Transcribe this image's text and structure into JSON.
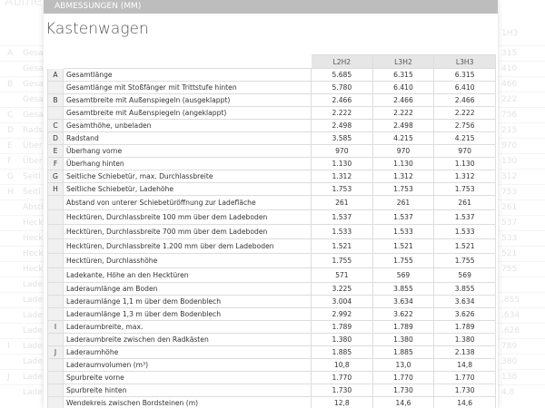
{
  "background": {
    "title": "Abme",
    "header_right": "1H3",
    "rows": [
      [
        "A",
        "Gesa",
        "315"
      ],
      [
        null,
        "Gesa",
        "410"
      ],
      [
        "B",
        "Gesa",
        "466"
      ],
      [
        null,
        "Gesa",
        "222"
      ],
      [
        "C",
        "Gesa",
        "756"
      ],
      [
        "D",
        "Rads",
        "215"
      ],
      [
        "E",
        "Über",
        "970"
      ],
      [
        "F",
        "Über",
        "130"
      ],
      [
        "G",
        "Seitl",
        "312"
      ],
      [
        "H",
        "Seitl",
        "753"
      ],
      [
        null,
        "Absti",
        "261"
      ],
      [
        null,
        "Heck",
        "537"
      ],
      [
        null,
        "Heck",
        "533"
      ],
      [
        null,
        "Heck",
        "521"
      ],
      [
        null,
        "Heck",
        "755"
      ],
      [
        null,
        "Lade",
        null
      ],
      [
        null,
        "Lade",
        ".855"
      ],
      [
        null,
        "Lade",
        ".634"
      ],
      [
        null,
        "Lade",
        ".626"
      ],
      [
        "I",
        "Lade",
        "789"
      ],
      [
        null,
        "Lade",
        "380"
      ],
      [
        "J",
        "Lade",
        "138"
      ],
      [
        null,
        "Lade",
        "4,8"
      ]
    ]
  },
  "modal": {
    "header": "ABMESSUNGEN (MM)",
    "title": "Kastenwagen",
    "table": {
      "columns": [
        "L2H2",
        "L3H2",
        "L3H3"
      ],
      "rows": [
        [
          "A",
          "Gesamtlänge",
          "5.685",
          "6.315",
          "6.315"
        ],
        [
          null,
          "Gesamtlänge mit Stoßfänger mit Trittstufe hinten",
          "5.780",
          "6.410",
          "6.410"
        ],
        [
          "B",
          "Gesamtbreite mit Außenspiegeln (ausgeklappt)",
          "2.466",
          "2.466",
          "2.466"
        ],
        [
          null,
          "Gesamtbreite mit Außenspiegeln (angeklappt)",
          "2.222",
          "2.222",
          "2.222"
        ],
        [
          "C",
          "Gesamthöhe, unbeladen",
          "2.498",
          "2.498",
          "2.756"
        ],
        [
          "D",
          "Radstand",
          "3.585",
          "4.215",
          "4.215"
        ],
        [
          "E",
          "Überhang vorne",
          "970",
          "970",
          "970"
        ],
        [
          "F",
          "Überhang hinten",
          "1.130",
          "1.130",
          "1.130"
        ],
        [
          "G",
          "Seitliche Schiebetür, max. Durchlassbreite",
          "1.312",
          "1.312",
          "1.312"
        ],
        [
          "H",
          "Seitliche Schiebetür, Ladehöhe",
          "1.753",
          "1.753",
          "1.753"
        ],
        [
          null,
          "Abstand von unterer Schiebetüröffnung zur Ladefläche",
          "261",
          "261",
          "261"
        ],
        [
          null,
          "Hecktüren, Durchlassbreite 100 mm über dem Ladeboden",
          "1.537",
          "1.537",
          "1.537"
        ],
        [
          null,
          "Hecktüren, Durchlassbreite 700 mm über dem Ladeboden",
          "1.533",
          "1.533",
          "1.533"
        ],
        [
          null,
          "Hecktüren, Durchlassbreite 1.200 mm über dem Ladeboden",
          "1.521",
          "1.521",
          "1.521"
        ],
        [
          null,
          "Hecktüren, Durchlasshöhe",
          "1.755",
          "1.755",
          "1.755"
        ],
        [
          null,
          "Ladekante, Höhe an den Hecktüren",
          "571",
          "569",
          "569"
        ],
        [
          null,
          "Laderaumlänge am Boden",
          "3.225",
          "3.855",
          "3.855"
        ],
        [
          null,
          "Laderaumlänge 1,1 m über dem Bodenblech",
          "3.004",
          "3.634",
          "3.634"
        ],
        [
          null,
          "Laderaumlänge 1,3 m über dem Bodenblech",
          "2.992",
          "3.622",
          "3.626"
        ],
        [
          "I",
          "Laderaumbreite, max.",
          "1.789",
          "1.789",
          "1.789"
        ],
        [
          null,
          "Laderaumbreite zwischen den Radkästen",
          "1.380",
          "1.380",
          "1.380"
        ],
        [
          "J",
          "Laderaumhöhe",
          "1.885",
          "1.885",
          "2.138"
        ],
        [
          null,
          "Laderaumvolumen (m³)",
          "10,8",
          "13,0",
          "14,8"
        ],
        [
          null,
          "Spurbreite vorne",
          "1.770",
          "1.770",
          "1.770"
        ],
        [
          null,
          "Spurbreite hinten",
          "1.730",
          "1.730",
          "1.730"
        ],
        [
          null,
          "Wendekreis zwischen Bordsteinen (m)",
          "12,8",
          "14,6",
          "14,6"
        ]
      ]
    }
  }
}
